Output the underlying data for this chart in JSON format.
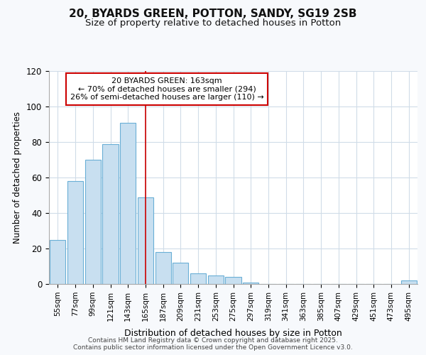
{
  "title1": "20, BYARDS GREEN, POTTON, SANDY, SG19 2SB",
  "title2": "Size of property relative to detached houses in Potton",
  "xlabel": "Distribution of detached houses by size in Potton",
  "ylabel": "Number of detached properties",
  "categories": [
    "55sqm",
    "77sqm",
    "99sqm",
    "121sqm",
    "143sqm",
    "165sqm",
    "187sqm",
    "209sqm",
    "231sqm",
    "253sqm",
    "275sqm",
    "297sqm",
    "319sqm",
    "341sqm",
    "363sqm",
    "385sqm",
    "407sqm",
    "429sqm",
    "451sqm",
    "473sqm",
    "495sqm"
  ],
  "values": [
    25,
    58,
    70,
    79,
    91,
    49,
    18,
    12,
    6,
    5,
    4,
    1,
    0,
    0,
    0,
    0,
    0,
    0,
    0,
    0,
    2
  ],
  "bar_color": "#c8dff0",
  "bar_edge_color": "#6aafd6",
  "vline_x_index": 5,
  "vline_color": "#cc0000",
  "annotation_text": "20 BYARDS GREEN: 163sqm\n← 70% of detached houses are smaller (294)\n26% of semi-detached houses are larger (110) →",
  "annotation_box_color": "#ffffff",
  "annotation_box_edge": "#cc0000",
  "ylim": [
    0,
    120
  ],
  "yticks": [
    0,
    20,
    40,
    60,
    80,
    100,
    120
  ],
  "footer": "Contains HM Land Registry data © Crown copyright and database right 2025.\nContains public sector information licensed under the Open Government Licence v3.0.",
  "bg_color": "#f7f9fc",
  "plot_bg_color": "#ffffff",
  "grid_color": "#d0dce8",
  "title1_fontsize": 11,
  "title2_fontsize": 9.5
}
